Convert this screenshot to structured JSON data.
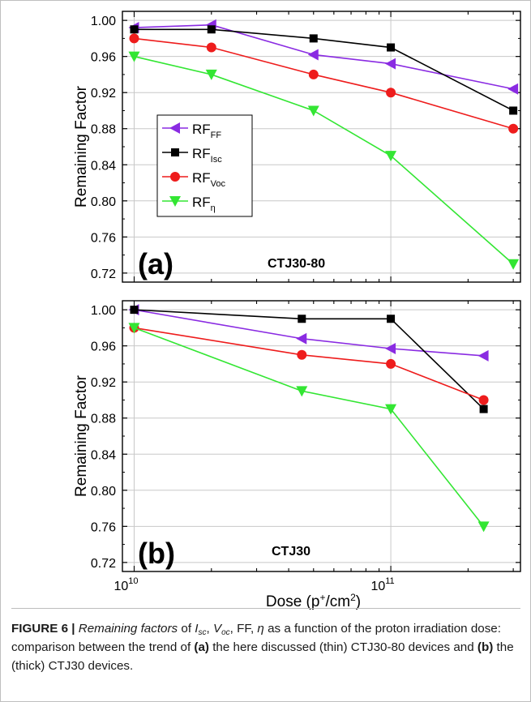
{
  "figure": {
    "xlabel": "Dose (p",
    "xlabel_sup": "+",
    "xlabel_mid": "/cm",
    "xlabel_sup2": "2",
    "xlabel_end": ")",
    "x_ticks": [
      {
        "base": "10",
        "exp": "10"
      },
      {
        "base": "10",
        "exp": "11"
      }
    ]
  },
  "chart_data": [
    {
      "type": "line",
      "panel_label": "(a)",
      "device": "CTJ30-80",
      "ylabel": "Remaining Factor",
      "xscale": "log",
      "xlim": [
        9000000000.0,
        320000000000.0
      ],
      "ylim": [
        0.71,
        1.01
      ],
      "yticks": [
        "0.72",
        "0.76",
        "0.80",
        "0.84",
        "0.88",
        "0.92",
        "0.96",
        "1.00"
      ],
      "grid": true,
      "legend": "left-middle",
      "series": [
        {
          "name": "RF",
          "sub": "FF",
          "color": "#8a2be2",
          "marker": "triangle-left",
          "x": [
            10000000000.0,
            20000000000.0,
            50000000000.0,
            100000000000.0,
            300000000000.0
          ],
          "y": [
            0.992,
            0.995,
            0.962,
            0.952,
            0.924
          ]
        },
        {
          "name": "RF",
          "sub": "Isc",
          "color": "#000000",
          "marker": "square",
          "x": [
            10000000000.0,
            20000000000.0,
            50000000000.0,
            100000000000.0,
            300000000000.0
          ],
          "y": [
            0.99,
            0.99,
            0.98,
            0.97,
            0.9
          ]
        },
        {
          "name": "RF",
          "sub": "Voc",
          "color": "#ee1c1c",
          "marker": "circle",
          "x": [
            10000000000.0,
            20000000000.0,
            50000000000.0,
            100000000000.0,
            300000000000.0
          ],
          "y": [
            0.98,
            0.97,
            0.94,
            0.92,
            0.88
          ]
        },
        {
          "name": "RF",
          "sub": "η",
          "color": "#33e633",
          "marker": "triangle-down",
          "x": [
            10000000000.0,
            20000000000.0,
            50000000000.0,
            100000000000.0,
            300000000000.0
          ],
          "y": [
            0.96,
            0.94,
            0.9,
            0.85,
            0.73
          ]
        }
      ]
    },
    {
      "type": "line",
      "panel_label": "(b)",
      "device": "CTJ30",
      "ylabel": "Remaining Factor",
      "xscale": "log",
      "xlim": [
        9000000000.0,
        320000000000.0
      ],
      "ylim": [
        0.71,
        1.01
      ],
      "yticks": [
        "0.72",
        "0.76",
        "0.80",
        "0.84",
        "0.88",
        "0.92",
        "0.96",
        "1.00"
      ],
      "grid": true,
      "legend": "none",
      "series": [
        {
          "name": "RF",
          "sub": "FF",
          "color": "#8a2be2",
          "marker": "triangle-left",
          "x": [
            10000000000.0,
            45000000000.0,
            100000000000.0,
            230000000000.0
          ],
          "y": [
            1.0,
            0.968,
            0.957,
            0.949
          ]
        },
        {
          "name": "RF",
          "sub": "Isc",
          "color": "#000000",
          "marker": "square",
          "x": [
            10000000000.0,
            45000000000.0,
            100000000000.0,
            230000000000.0
          ],
          "y": [
            1.0,
            0.99,
            0.99,
            0.89
          ]
        },
        {
          "name": "RF",
          "sub": "Voc",
          "color": "#ee1c1c",
          "marker": "circle",
          "x": [
            10000000000.0,
            45000000000.0,
            100000000000.0,
            230000000000.0
          ],
          "y": [
            0.98,
            0.95,
            0.94,
            0.9
          ]
        },
        {
          "name": "RF",
          "sub": "η",
          "color": "#33e633",
          "marker": "triangle-down",
          "x": [
            10000000000.0,
            45000000000.0,
            100000000000.0,
            230000000000.0
          ],
          "y": [
            0.98,
            0.91,
            0.89,
            0.76
          ]
        }
      ]
    }
  ],
  "caption": {
    "label": "FIGURE 6 |",
    "t1": "Remaining factors",
    "t2": " of ",
    "isc_base": "I",
    "isc_sub": "sc",
    "t3": ", ",
    "voc_base": "V",
    "voc_sub": "oc",
    "t4": ", FF, ",
    "eta": "η",
    "t5": " as a function of the proton irradiation dose: comparison between the trend of ",
    "a": "(a)",
    "t6": " the here discussed (thin) CTJ30-80 devices and ",
    "b": "(b)",
    "t7": " the (thick) CTJ30 devices."
  }
}
